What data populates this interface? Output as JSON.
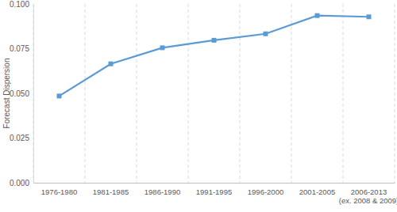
{
  "chart_data": {
    "type": "line",
    "y_label": "Forecast Dispersion",
    "categories": [
      "1976-1980",
      "1981-1985",
      "1986-1990",
      "1991-1995",
      "1996-2000",
      "2001-2005",
      "2006-2013\n(ex. 2008 & 2009)"
    ],
    "values": [
      0.0485,
      0.0665,
      0.0755,
      0.0797,
      0.0833,
      0.0935,
      0.0928
    ],
    "color": "#5b9bd5",
    "marker": "square",
    "ylim": [
      0,
      0.1
    ],
    "yticks": [
      {
        "value": 0,
        "label": "0.000"
      },
      {
        "value": 0.025,
        "label": "0.025"
      },
      {
        "value": 0.05,
        "label": "0.050"
      },
      {
        "value": 0.075,
        "label": "0.075"
      },
      {
        "value": 0.1,
        "label": "0.100"
      }
    ],
    "grid": true
  }
}
